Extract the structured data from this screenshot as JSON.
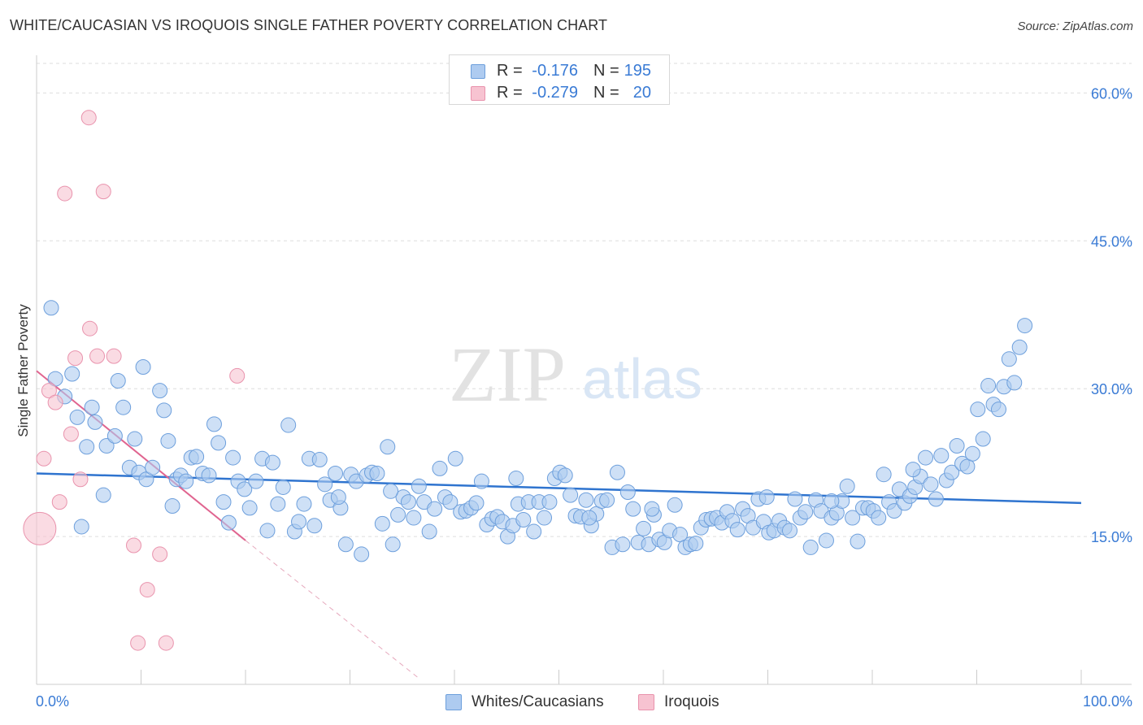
{
  "title": "WHITE/CAUCASIAN VS IROQUOIS SINGLE FATHER POVERTY CORRELATION CHART",
  "source": "Source: ZipAtlas.com",
  "watermark": {
    "zip": "ZIP",
    "atlas": "atlas"
  },
  "colors": {
    "blue_fill": "#aecbf0",
    "blue_stroke": "#6d9fdc",
    "blue_line": "#2f74cf",
    "pink_fill": "#f7c3d1",
    "pink_stroke": "#e993ad",
    "pink_line": "#e06590",
    "axis_label": "#3a7bd5",
    "grid": "#dddddd"
  },
  "stats_legend": [
    {
      "r_label": "R =",
      "r_value": "-0.176",
      "n_label": "N =",
      "n_value": "195",
      "color": "blue"
    },
    {
      "r_label": "R =",
      "r_value": "-0.279",
      "n_label": "N =",
      "n_value": "20",
      "color": "pink"
    }
  ],
  "bottom_legend": [
    {
      "label": "Whites/Caucasians",
      "color": "blue"
    },
    {
      "label": "Iroquois",
      "color": "pink"
    }
  ],
  "chart_data": {
    "type": "scatter",
    "title": "WHITE/CAUCASIAN VS IROQUOIS SINGLE FATHER POVERTY CORRELATION CHART",
    "xlabel": "",
    "ylabel": "Single Father Poverty",
    "xlim": [
      0,
      100
    ],
    "ylim": [
      0,
      63
    ],
    "x_tick_labels": [
      "0.0%",
      "100.0%"
    ],
    "y_ticks": [
      {
        "value": 15,
        "label": "15.0%"
      },
      {
        "value": 30,
        "label": "30.0%"
      },
      {
        "value": 45,
        "label": "45.0%"
      },
      {
        "value": 60,
        "label": "60.0%"
      }
    ],
    "grid": true,
    "legend_position": "top-center",
    "series": [
      {
        "name": "Whites/Caucasians",
        "color": "blue",
        "trend": {
          "x": [
            0,
            100
          ],
          "y": [
            21.4,
            18.4
          ],
          "style": "solid"
        },
        "points": [
          [
            1.4,
            38.2
          ],
          [
            1.8,
            31.0
          ],
          [
            2.7,
            29.2
          ],
          [
            3.4,
            31.5
          ],
          [
            3.9,
            27.1
          ],
          [
            4.3,
            16.0
          ],
          [
            4.8,
            24.1
          ],
          [
            5.3,
            28.1
          ],
          [
            5.6,
            26.6
          ],
          [
            6.4,
            19.2
          ],
          [
            6.7,
            24.2
          ],
          [
            7.5,
            25.2
          ],
          [
            7.8,
            30.8
          ],
          [
            8.3,
            28.1
          ],
          [
            8.9,
            22.0
          ],
          [
            9.4,
            24.9
          ],
          [
            9.8,
            21.5
          ],
          [
            10.5,
            20.8
          ],
          [
            10.2,
            32.2
          ],
          [
            11.1,
            22.0
          ],
          [
            11.8,
            29.8
          ],
          [
            12.2,
            27.8
          ],
          [
            12.6,
            24.7
          ],
          [
            13.0,
            18.1
          ],
          [
            13.4,
            20.8
          ],
          [
            13.8,
            21.2
          ],
          [
            14.3,
            20.6
          ],
          [
            14.8,
            23.0
          ],
          [
            15.3,
            23.1
          ],
          [
            15.9,
            21.4
          ],
          [
            16.5,
            21.2
          ],
          [
            17.0,
            26.4
          ],
          [
            17.4,
            24.5
          ],
          [
            17.9,
            18.5
          ],
          [
            18.4,
            16.4
          ],
          [
            18.8,
            23.0
          ],
          [
            19.3,
            20.6
          ],
          [
            19.9,
            19.8
          ],
          [
            20.4,
            17.9
          ],
          [
            21.0,
            20.6
          ],
          [
            21.6,
            22.9
          ],
          [
            22.1,
            15.6
          ],
          [
            22.6,
            22.5
          ],
          [
            23.1,
            18.3
          ],
          [
            23.6,
            20.0
          ],
          [
            24.1,
            26.3
          ],
          [
            24.7,
            15.5
          ],
          [
            25.1,
            16.5
          ],
          [
            25.6,
            18.3
          ],
          [
            26.1,
            22.9
          ],
          [
            26.6,
            16.1
          ],
          [
            27.1,
            22.8
          ],
          [
            27.6,
            20.3
          ],
          [
            28.1,
            18.7
          ],
          [
            28.6,
            21.4
          ],
          [
            29.1,
            17.9
          ],
          [
            29.6,
            14.2
          ],
          [
            30.1,
            21.3
          ],
          [
            30.6,
            20.6
          ],
          [
            31.1,
            13.2
          ],
          [
            31.6,
            21.2
          ],
          [
            32.1,
            21.5
          ],
          [
            32.6,
            21.4
          ],
          [
            33.1,
            16.3
          ],
          [
            33.6,
            24.1
          ],
          [
            34.1,
            14.2
          ],
          [
            34.6,
            17.2
          ],
          [
            35.1,
            19.0
          ],
          [
            35.6,
            18.5
          ],
          [
            36.1,
            16.9
          ],
          [
            36.6,
            20.1
          ],
          [
            37.1,
            18.5
          ],
          [
            37.6,
            15.5
          ],
          [
            38.1,
            17.8
          ],
          [
            38.6,
            21.9
          ],
          [
            39.1,
            19.0
          ],
          [
            39.6,
            18.5
          ],
          [
            40.1,
            22.9
          ],
          [
            40.6,
            17.5
          ],
          [
            41.1,
            17.6
          ],
          [
            41.6,
            17.9
          ],
          [
            42.1,
            18.4
          ],
          [
            42.6,
            20.6
          ],
          [
            43.1,
            16.2
          ],
          [
            43.6,
            16.8
          ],
          [
            44.1,
            17.0
          ],
          [
            44.6,
            16.5
          ],
          [
            45.1,
            15.0
          ],
          [
            45.6,
            16.1
          ],
          [
            46.1,
            18.3
          ],
          [
            46.6,
            16.7
          ],
          [
            47.1,
            18.5
          ],
          [
            47.6,
            15.5
          ],
          [
            48.1,
            18.5
          ],
          [
            48.6,
            16.9
          ],
          [
            49.1,
            18.5
          ],
          [
            49.6,
            20.9
          ],
          [
            50.1,
            21.5
          ],
          [
            50.6,
            21.2
          ],
          [
            51.1,
            19.2
          ],
          [
            51.6,
            17.1
          ],
          [
            52.1,
            17.0
          ],
          [
            52.6,
            18.7
          ],
          [
            53.1,
            16.1
          ],
          [
            53.6,
            17.3
          ],
          [
            54.1,
            18.6
          ],
          [
            54.6,
            18.7
          ],
          [
            55.1,
            13.9
          ],
          [
            55.6,
            21.5
          ],
          [
            56.1,
            14.2
          ],
          [
            56.6,
            19.5
          ],
          [
            57.1,
            17.8
          ],
          [
            57.6,
            14.4
          ],
          [
            58.1,
            15.8
          ],
          [
            58.6,
            14.2
          ],
          [
            59.1,
            17.2
          ],
          [
            59.6,
            14.7
          ],
          [
            60.1,
            14.4
          ],
          [
            60.6,
            15.6
          ],
          [
            61.1,
            18.2
          ],
          [
            61.6,
            15.2
          ],
          [
            62.1,
            13.9
          ],
          [
            62.6,
            14.2
          ],
          [
            63.1,
            14.3
          ],
          [
            63.6,
            15.9
          ],
          [
            64.1,
            16.7
          ],
          [
            64.6,
            16.8
          ],
          [
            65.1,
            16.9
          ],
          [
            65.6,
            16.4
          ],
          [
            66.1,
            17.5
          ],
          [
            66.6,
            16.6
          ],
          [
            67.1,
            15.7
          ],
          [
            67.6,
            17.8
          ],
          [
            68.1,
            17.1
          ],
          [
            68.6,
            15.9
          ],
          [
            69.1,
            18.8
          ],
          [
            69.6,
            16.5
          ],
          [
            70.1,
            15.4
          ],
          [
            70.6,
            15.6
          ],
          [
            71.1,
            16.6
          ],
          [
            71.6,
            15.9
          ],
          [
            72.1,
            15.6
          ],
          [
            72.6,
            18.8
          ],
          [
            73.1,
            16.9
          ],
          [
            73.6,
            17.5
          ],
          [
            74.1,
            13.9
          ],
          [
            74.6,
            18.7
          ],
          [
            75.1,
            17.6
          ],
          [
            75.6,
            14.6
          ],
          [
            76.1,
            16.9
          ],
          [
            76.6,
            17.4
          ],
          [
            77.1,
            18.6
          ],
          [
            77.6,
            20.1
          ],
          [
            78.1,
            16.9
          ],
          [
            78.6,
            14.5
          ],
          [
            79.1,
            17.9
          ],
          [
            79.6,
            17.9
          ],
          [
            80.1,
            17.6
          ],
          [
            80.6,
            16.9
          ],
          [
            81.1,
            21.3
          ],
          [
            81.6,
            18.5
          ],
          [
            82.1,
            17.6
          ],
          [
            82.6,
            19.8
          ],
          [
            83.1,
            18.4
          ],
          [
            83.6,
            19.1
          ],
          [
            84.1,
            20.0
          ],
          [
            84.6,
            21.1
          ],
          [
            85.1,
            23.0
          ],
          [
            85.6,
            20.3
          ],
          [
            86.1,
            18.8
          ],
          [
            86.6,
            23.2
          ],
          [
            87.1,
            20.7
          ],
          [
            87.6,
            21.5
          ],
          [
            88.1,
            24.2
          ],
          [
            88.6,
            22.4
          ],
          [
            89.1,
            22.1
          ],
          [
            89.6,
            23.4
          ],
          [
            90.1,
            27.9
          ],
          [
            90.6,
            24.9
          ],
          [
            91.1,
            30.3
          ],
          [
            91.6,
            28.4
          ],
          [
            92.1,
            27.9
          ],
          [
            92.6,
            30.2
          ],
          [
            93.1,
            33.0
          ],
          [
            93.6,
            30.6
          ],
          [
            94.1,
            34.2
          ],
          [
            94.6,
            36.4
          ],
          [
            76.1,
            18.6
          ],
          [
            52.9,
            16.9
          ],
          [
            33.9,
            19.6
          ],
          [
            28.9,
            19.0
          ],
          [
            45.9,
            20.9
          ],
          [
            58.9,
            17.8
          ],
          [
            69.9,
            19.0
          ],
          [
            83.9,
            21.8
          ]
        ]
      },
      {
        "name": "Iroquois",
        "color": "pink",
        "trend": {
          "x": [
            0,
            20
          ],
          "y": [
            31.8,
            14.6
          ],
          "dashed_extension_to": [
            36.5,
            0.7
          ]
        },
        "points": [
          [
            0.3,
            15.8
          ],
          [
            0.7,
            22.9
          ],
          [
            1.2,
            29.8
          ],
          [
            1.8,
            28.6
          ],
          [
            2.7,
            49.8
          ],
          [
            3.3,
            25.4
          ],
          [
            4.2,
            20.8
          ],
          [
            2.2,
            18.5
          ],
          [
            3.7,
            33.1
          ],
          [
            5.0,
            57.5
          ],
          [
            5.1,
            36.1
          ],
          [
            5.8,
            33.3
          ],
          [
            6.4,
            50.0
          ],
          [
            7.4,
            33.3
          ],
          [
            9.3,
            14.1
          ],
          [
            10.6,
            9.6
          ],
          [
            9.7,
            4.2
          ],
          [
            11.8,
            13.2
          ],
          [
            12.4,
            4.2
          ],
          [
            19.2,
            31.3
          ]
        ]
      }
    ]
  }
}
